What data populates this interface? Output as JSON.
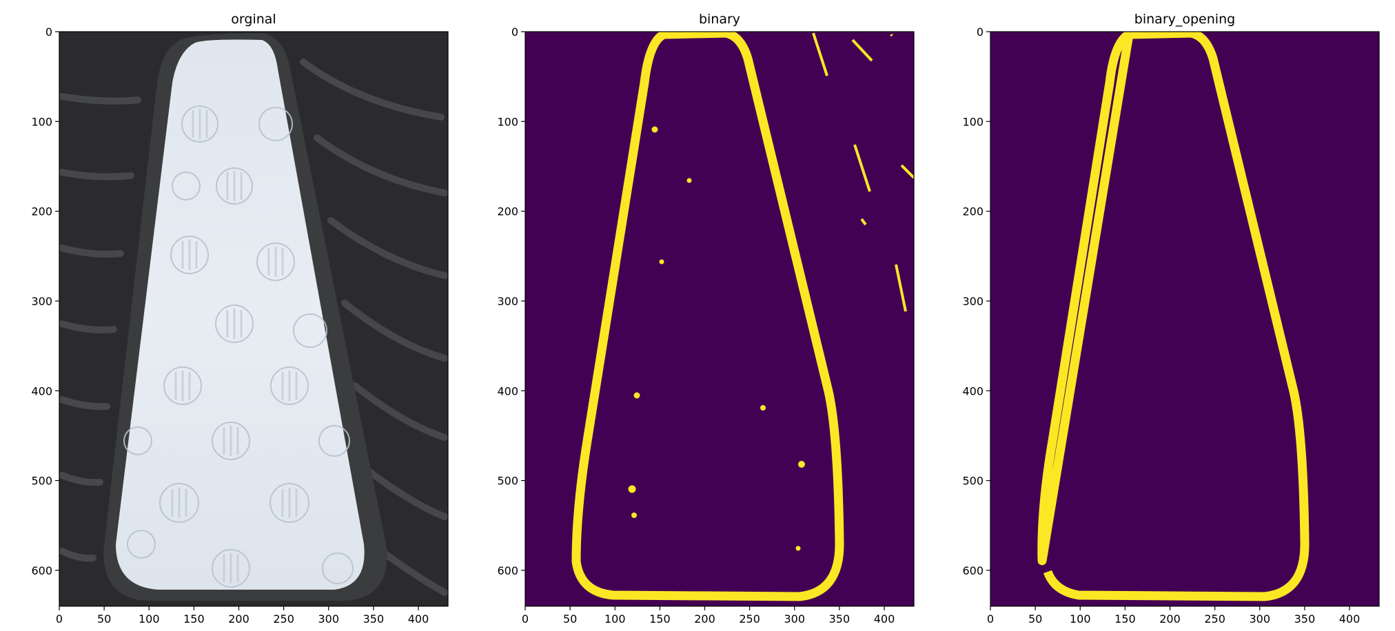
{
  "chart_data": [
    {
      "type": "image",
      "title": "orginal",
      "xticks": [
        "0",
        "50",
        "100",
        "150",
        "200",
        "250",
        "300",
        "350",
        "400"
      ],
      "yticks": [
        "0",
        "100",
        "200",
        "300",
        "400",
        "500",
        "600"
      ],
      "xlim": [
        0,
        433
      ],
      "ylim": [
        640,
        0
      ],
      "content": "photo of a white textured foam panel inside a dark rubber frame"
    },
    {
      "type": "image",
      "title": "binary",
      "xticks": [
        "0",
        "50",
        "100",
        "150",
        "200",
        "250",
        "300",
        "350",
        "400"
      ],
      "yticks": [
        "0",
        "100",
        "200",
        "300",
        "400",
        "500",
        "600"
      ],
      "xlim": [
        0,
        433
      ],
      "ylim": [
        640,
        0
      ],
      "colors": {
        "background": "#440154",
        "foreground": "#fde725"
      },
      "content": "binary mask: yellow outline of the panel plus small noise specks"
    },
    {
      "type": "image",
      "title": "binary_opening",
      "xticks": [
        "0",
        "50",
        "100",
        "150",
        "200",
        "250",
        "300",
        "350",
        "400"
      ],
      "yticks": [
        "0",
        "100",
        "200",
        "300",
        "400",
        "500",
        "600"
      ],
      "xlim": [
        0,
        433
      ],
      "ylim": [
        640,
        0
      ],
      "colors": {
        "background": "#440154",
        "foreground": "#fde725"
      },
      "content": "binary mask after opening: clean yellow outline, noise removed"
    }
  ]
}
